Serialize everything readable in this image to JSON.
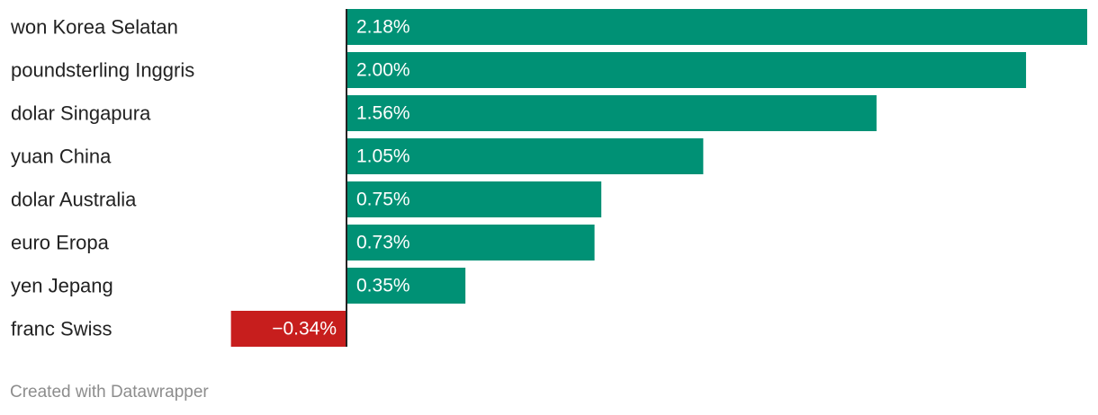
{
  "chart_data": {
    "type": "bar",
    "orientation": "horizontal",
    "categories": [
      "won Korea Selatan",
      "poundsterling Inggris",
      "dolar Singapura",
      "yuan China",
      "dolar Australia",
      "euro Eropa",
      "yen Jepang",
      "franc Swiss"
    ],
    "values": [
      2.18,
      2.0,
      1.56,
      1.05,
      0.75,
      0.73,
      0.35,
      -0.34
    ],
    "value_labels": [
      "2.18%",
      "2.00%",
      "1.56%",
      "1.05%",
      "0.75%",
      "0.73%",
      "0.35%",
      "−0.34%"
    ],
    "xlim": [
      -0.34,
      2.18
    ],
    "colors": {
      "positive": "#009175",
      "negative": "#c71e1d",
      "axis": "#222222"
    },
    "grid": false,
    "legend": "none"
  },
  "footer": {
    "credit": "Created with Datawrapper"
  }
}
